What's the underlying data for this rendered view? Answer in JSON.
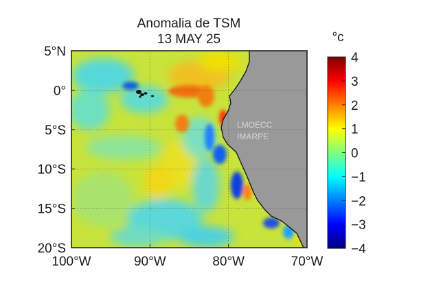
{
  "title": {
    "line1": "Anomalia de TSM",
    "line2": "13 MAY 25"
  },
  "map": {
    "lon_range": [
      -100,
      -70
    ],
    "lat_range": [
      -20,
      5
    ],
    "x_ticks": [
      {
        "value": -100,
        "label": "100°W"
      },
      {
        "value": -90,
        "label": "90°W"
      },
      {
        "value": -80,
        "label": "80°W"
      },
      {
        "value": -70,
        "label": "70°W"
      }
    ],
    "y_ticks": [
      {
        "value": 5,
        "label": "5°N"
      },
      {
        "value": 0,
        "label": "0°"
      },
      {
        "value": -5,
        "label": "5°S"
      },
      {
        "value": -10,
        "label": "10°S"
      },
      {
        "value": -15,
        "label": "15°S"
      },
      {
        "value": -20,
        "label": "20°S"
      }
    ],
    "grid": true,
    "land_color": "#999999",
    "watermark": [
      "LMOECC",
      "IMARPE"
    ]
  },
  "colorbar": {
    "unit": "°c",
    "range": [
      -4,
      4
    ],
    "ticks": [
      {
        "value": 4,
        "label": "4"
      },
      {
        "value": 3,
        "label": "3"
      },
      {
        "value": 2,
        "label": "2"
      },
      {
        "value": 1,
        "label": "1"
      },
      {
        "value": 0,
        "label": "0"
      },
      {
        "value": -1,
        "label": "−1"
      },
      {
        "value": -2,
        "label": "−2"
      },
      {
        "value": -3,
        "label": "−3"
      },
      {
        "value": -4,
        "label": "−4"
      }
    ],
    "colormap": [
      "#00007f",
      "#0000ff",
      "#007fff",
      "#00ffff",
      "#7fff7f",
      "#ffff00",
      "#ff7f00",
      "#ff0000",
      "#7f0000"
    ]
  }
}
